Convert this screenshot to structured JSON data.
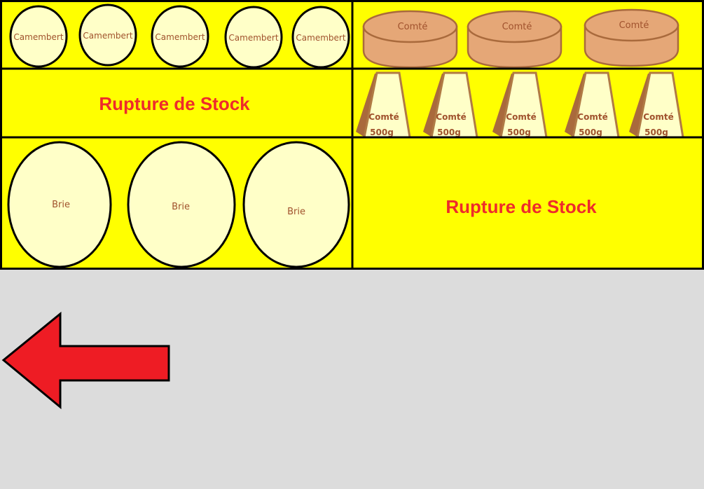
{
  "shelves": {
    "top_left": {
      "cheeses": [
        "Camembert",
        "Camembert",
        "Camembert",
        "Camembert",
        "Camembert"
      ]
    },
    "top_right": {
      "cheeses": [
        "Comté",
        "Comté",
        "Comté"
      ]
    },
    "middle_left": {
      "status": "Rupture de Stock"
    },
    "middle_right": {
      "wedges": [
        {
          "name": "Comté",
          "weight": "500g"
        },
        {
          "name": "Comté",
          "weight": "500g"
        },
        {
          "name": "Comté",
          "weight": "500g"
        },
        {
          "name": "Comté",
          "weight": "500g"
        },
        {
          "name": "Comté",
          "weight": "500g"
        }
      ]
    },
    "bottom_left": {
      "cheeses": [
        "Brie",
        "Brie",
        "Brie"
      ]
    },
    "bottom_right": {
      "status": "Rupture de Stock"
    }
  },
  "navigation": {
    "back_icon": "left-arrow-icon"
  },
  "colors": {
    "shelf": "#ffff00",
    "background": "#dcdcdc",
    "out_of_stock_text": "#ee2b2b",
    "arrow": "#ee1c24",
    "cheese_label": "#a0522d"
  }
}
